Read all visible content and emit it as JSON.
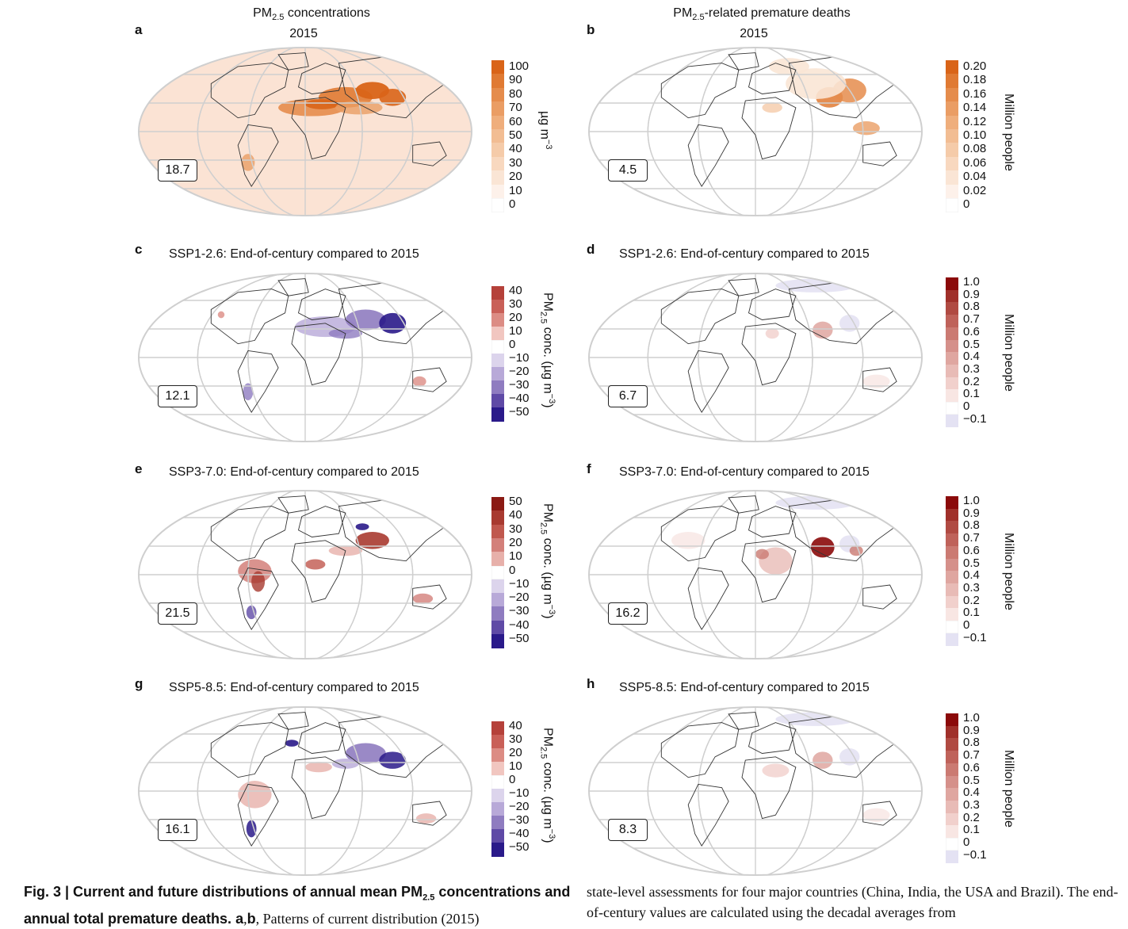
{
  "panels": [
    {
      "id": "a",
      "letter": "a",
      "title_pre": "PM",
      "title_sub": "2.5",
      "title_post": " concentrations",
      "year": "2015",
      "global_value": "18.7",
      "type": "conc",
      "colorbar": {
        "ticks": [
          "100",
          "90",
          "80",
          "70",
          "60",
          "50",
          "40",
          "30",
          "20",
          "10",
          "0"
        ],
        "colors": [
          "#d96418",
          "#e07a33",
          "#e58c4c",
          "#ea9d64",
          "#efae7c",
          "#f2bd93",
          "#f5cba9",
          "#f8d8bf",
          "#fae5d5",
          "#fdf1ea",
          "#ffffff"
        ],
        "label_parts": [
          "µg m",
          "−3"
        ]
      }
    },
    {
      "id": "b",
      "letter": "b",
      "title_pre": "PM",
      "title_sub": "2.5",
      "title_post": "-related premature deaths",
      "year": "2015",
      "global_value": "4.5",
      "type": "deaths0",
      "colorbar": {
        "ticks": [
          "0.20",
          "0.18",
          "0.16",
          "0.14",
          "0.12",
          "0.10",
          "0.08",
          "0.06",
          "0.04",
          "0.02",
          "0"
        ],
        "colors": [
          "#d96418",
          "#e07a33",
          "#e58c4c",
          "#ea9d64",
          "#efae7c",
          "#f2bd93",
          "#f5cba9",
          "#f8d8bf",
          "#fae5d5",
          "#fdf1ea",
          "#ffffff"
        ],
        "label": "Million people"
      }
    },
    {
      "id": "c",
      "letter": "c",
      "title": "SSP1-2.6: End-of-century compared to 2015",
      "global_value": "12.1",
      "type": "diff1",
      "colorbar": {
        "ticks": [
          "40",
          "30",
          "20",
          "10",
          "0",
          "−10",
          "−20",
          "−30",
          "−40",
          "−50"
        ],
        "colors": [
          "#b5413a",
          "#c96058",
          "#dc8c84",
          "#f1c6c0",
          "#ffffff",
          "#dcd4ec",
          "#b8a9d8",
          "#8f7cc0",
          "#5f4aa6",
          "#2a1a8a"
        ],
        "label_parts": [
          "PM",
          "2.5",
          " conc. (µg m",
          "−3",
          ")"
        ]
      }
    },
    {
      "id": "d",
      "letter": "d",
      "title": "SSP1-2.6: End-of-century compared to 2015",
      "global_value": "6.7",
      "type": "dd1",
      "colorbar": {
        "ticks": [
          "1.0",
          "0.9",
          "0.8",
          "0.7",
          "0.6",
          "0.5",
          "0.4",
          "0.3",
          "0.2",
          "0.1",
          "0",
          "−0.1"
        ],
        "colors": [
          "#8b0a0a",
          "#a0302a",
          "#b04a42",
          "#bf625a",
          "#cb7a72",
          "#d5908a",
          "#dfa6a0",
          "#e8bbb6",
          "#f1d0cc",
          "#f8e6e3",
          "#ffffff",
          "#e4e2f3"
        ],
        "label": "Million people"
      }
    },
    {
      "id": "e",
      "letter": "e",
      "title": "SSP3-7.0: End-of-century compared to 2015",
      "global_value": "21.5",
      "type": "diff3",
      "colorbar": {
        "ticks": [
          "50",
          "40",
          "30",
          "20",
          "10",
          "0",
          "−10",
          "−20",
          "−30",
          "−40",
          "−50"
        ],
        "colors": [
          "#8b1a14",
          "#a83a30",
          "#c0584e",
          "#d3807a",
          "#e7b0aa",
          "#ffffff",
          "#dcd4ec",
          "#b8a9d8",
          "#8f7cc0",
          "#5f4aa6",
          "#2a1a8a"
        ],
        "label_parts": [
          "PM",
          "2.5",
          " conc. (µg m",
          "−3",
          ")"
        ]
      }
    },
    {
      "id": "f",
      "letter": "f",
      "title": "SSP3-7.0: End-of-century compared to 2015",
      "global_value": "16.2",
      "type": "dd3",
      "colorbar": {
        "ticks": [
          "1.0",
          "0.9",
          "0.8",
          "0.7",
          "0.6",
          "0.5",
          "0.4",
          "0.3",
          "0.2",
          "0.1",
          "0",
          "−0.1"
        ],
        "colors": [
          "#8b0a0a",
          "#a0302a",
          "#b04a42",
          "#bf625a",
          "#cb7a72",
          "#d5908a",
          "#dfa6a0",
          "#e8bbb6",
          "#f1d0cc",
          "#f8e6e3",
          "#ffffff",
          "#e4e2f3"
        ],
        "label": "Million people"
      }
    },
    {
      "id": "g",
      "letter": "g",
      "title": "SSP5-8.5: End-of-century compared to 2015",
      "global_value": "16.1",
      "type": "diff5",
      "colorbar": {
        "ticks": [
          "40",
          "30",
          "20",
          "10",
          "0",
          "−10",
          "−20",
          "−30",
          "−40",
          "−50"
        ],
        "colors": [
          "#b5413a",
          "#c96058",
          "#dc8c84",
          "#f1c6c0",
          "#ffffff",
          "#dcd4ec",
          "#b8a9d8",
          "#8f7cc0",
          "#5f4aa6",
          "#2a1a8a"
        ],
        "label_parts": [
          "PM",
          "2.5",
          " conc. (µg m",
          "−3",
          ")"
        ]
      }
    },
    {
      "id": "h",
      "letter": "h",
      "title": "SSP5-8.5: End-of-century compared to 2015",
      "global_value": "8.3",
      "type": "dd5",
      "colorbar": {
        "ticks": [
          "1.0",
          "0.9",
          "0.8",
          "0.7",
          "0.6",
          "0.5",
          "0.4",
          "0.3",
          "0.2",
          "0.1",
          "0",
          "−0.1"
        ],
        "colors": [
          "#8b0a0a",
          "#a0302a",
          "#b04a42",
          "#bf625a",
          "#cb7a72",
          "#d5908a",
          "#dfa6a0",
          "#e8bbb6",
          "#f1d0cc",
          "#f8e6e3",
          "#ffffff",
          "#e4e2f3"
        ],
        "label": "Million people"
      }
    }
  ],
  "caption": {
    "left_bold_1": "Fig. 3 | Current and future distributions of annual mean PM",
    "left_bold_sub": "2.5",
    "left_bold_2": " concentrations and annual total premature deaths. ",
    "left_bold_3": "a",
    "left_plain_1": ",",
    "left_bold_4": "b",
    "left_plain_2": ", Patterns of current distribution (2015)",
    "right_text": "state-level assessments for four major countries (China, India, the USA and Brazil). The end-of-century values are calculated using the decadal averages from"
  }
}
